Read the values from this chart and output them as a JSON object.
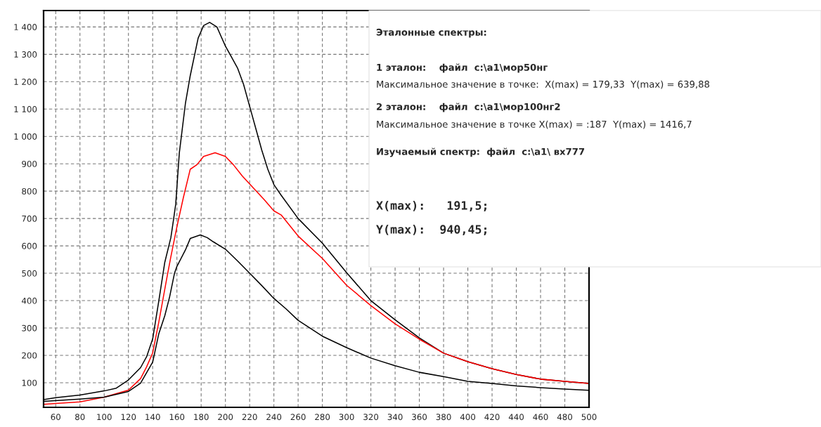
{
  "chart_data": {
    "type": "line",
    "xlim": [
      50,
      500
    ],
    "ylim": [
      10,
      1460
    ],
    "xticks": [
      60,
      80,
      100,
      120,
      140,
      160,
      180,
      200,
      220,
      240,
      260,
      280,
      300,
      320,
      340,
      360,
      380,
      400,
      420,
      440,
      460,
      480,
      500
    ],
    "yticks": [
      100,
      200,
      300,
      400,
      500,
      600,
      700,
      800,
      900,
      {
        "value": 1000,
        "label": "1 000"
      },
      {
        "value": 1100,
        "label": "1 100"
      },
      {
        "value": 1200,
        "label": "1 200"
      },
      {
        "value": 1300,
        "label": "1 300"
      },
      {
        "value": 1400,
        "label": "1 400"
      }
    ],
    "grid": true,
    "line_style": "solid",
    "marker": "none",
    "series": [
      {
        "color": "#000000",
        "x": [
          50,
          60,
          80,
          100,
          110,
          120,
          130,
          135,
          140,
          145,
          150,
          155,
          157,
          159,
          162,
          167,
          171,
          177.5,
          182,
          187,
          193,
          197,
          200,
          205,
          210,
          215,
          220,
          225,
          230,
          235,
          240,
          246,
          260,
          280,
          300,
          320,
          340,
          360,
          380,
          400,
          420,
          440,
          460,
          480,
          500
        ],
        "values": [
          38,
          45,
          55,
          70,
          80,
          110,
          155,
          195,
          260,
          397,
          540,
          630,
          690,
          752,
          940,
          1120,
          1222,
          1359,
          1405,
          1416.7,
          1400,
          1360,
          1330,
          1290,
          1250,
          1190,
          1110,
          1030,
          950,
          880,
          824,
          785,
          700,
          610,
          502,
          400,
          330,
          264,
          208,
          177,
          151,
          130,
          113,
          105,
          97
        ]
      },
      {
        "color": "#ff0000",
        "x": [
          50,
          60,
          80,
          100,
          120,
          130,
          135,
          140,
          145,
          152,
          155,
          160,
          165.4,
          171,
          176.6,
          182,
          191.5,
          200,
          206.5,
          214,
          223,
          232,
          240,
          246,
          260,
          280,
          300,
          320,
          340,
          360,
          380,
          400,
          420,
          440,
          460,
          480,
          500
        ],
        "values": [
          21,
          24,
          30,
          47,
          73,
          115,
          158,
          209,
          320,
          490,
          560,
          670,
          778,
          880,
          897,
          927,
          940.45,
          927,
          897,
          855,
          812,
          769,
          728,
          713,
          636,
          554,
          456,
          382,
          315,
          259,
          208,
          177,
          151,
          130,
          113,
          105,
          97
        ]
      },
      {
        "color": "#000000",
        "x": [
          50,
          80,
          100,
          120,
          130,
          140,
          145,
          150,
          154,
          158,
          160,
          167,
          171,
          179.33,
          185,
          190,
          200,
          210,
          220,
          230,
          240,
          250,
          260,
          280,
          300,
          320,
          340,
          360,
          380,
          400,
          420,
          440,
          460,
          480,
          500
        ],
        "values": [
          32,
          40,
          47,
          68,
          98,
          175,
          278,
          345,
          414,
          500,
          525,
          585,
          627,
          639.88,
          630,
          615,
          588,
          545,
          500,
          455,
          408,
          370,
          328,
          270,
          228,
          190,
          162,
          138,
          122,
          105,
          97,
          88,
          82,
          77,
          72
        ]
      }
    ],
    "annotations": [
      "Эталонные спектры:",
      "1 эталон:    файл  c:\\a1\\мор50нг",
      "Максимальное значение в точке:  X(max) = 179,33  Y(max) = 639,88",
      "2 эталон:    файл  c:\\a1\\мор100нг2",
      "Максимальное значение в точке X(max) = :187  Y(max) = 1416,7",
      "Изучаемый спектр:  файл  c:\\a1\\ вх777",
      "X(max):   191,5;",
      "Y(max):  940,45;"
    ]
  }
}
